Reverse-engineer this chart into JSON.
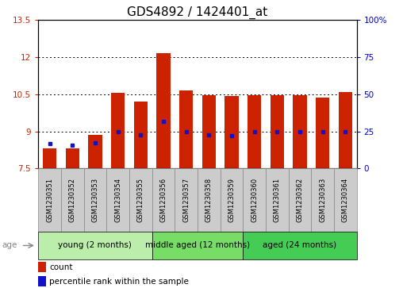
{
  "title": "GDS4892 / 1424401_at",
  "samples": [
    "GSM1230351",
    "GSM1230352",
    "GSM1230353",
    "GSM1230354",
    "GSM1230355",
    "GSM1230356",
    "GSM1230357",
    "GSM1230358",
    "GSM1230359",
    "GSM1230360",
    "GSM1230361",
    "GSM1230362",
    "GSM1230363",
    "GSM1230364"
  ],
  "counts": [
    8.3,
    8.3,
    8.85,
    10.55,
    10.2,
    12.15,
    10.65,
    10.45,
    10.42,
    10.45,
    10.45,
    10.45,
    10.38,
    10.6
  ],
  "percentiles": [
    8.5,
    8.45,
    8.55,
    9.0,
    8.85,
    9.4,
    9.0,
    8.85,
    8.82,
    8.98,
    8.98,
    9.0,
    8.98,
    9.0
  ],
  "ymin": 7.5,
  "ymax": 13.5,
  "yticks": [
    7.5,
    9.0,
    10.5,
    12.0,
    13.5
  ],
  "ytick_labels": [
    "7.5",
    "9",
    "10.5",
    "12",
    "13.5"
  ],
  "y2ticks": [
    0,
    25,
    50,
    75,
    100
  ],
  "y2tick_labels": [
    "0",
    "25",
    "50",
    "75",
    "100%"
  ],
  "gridlines": [
    9.0,
    10.5,
    12.0
  ],
  "bar_color": "#cc2200",
  "percentile_color": "#1111cc",
  "bar_bottom": 7.5,
  "groups": [
    {
      "label": "young (2 months)",
      "start": 0,
      "end": 5,
      "color": "#bbeeaa"
    },
    {
      "label": "middle aged (12 months)",
      "start": 5,
      "end": 9,
      "color": "#77dd66"
    },
    {
      "label": "aged (24 months)",
      "start": 9,
      "end": 14,
      "color": "#44cc55"
    }
  ],
  "age_label": "age",
  "legend_count_label": "count",
  "legend_pct_label": "percentile rank within the sample",
  "title_fontsize": 11,
  "tick_fontsize": 7.5,
  "sample_fontsize": 6,
  "group_fontsize": 7.5,
  "legend_fontsize": 7.5,
  "left_tick_color": "#cc2200",
  "right_tick_color": "#0000cc",
  "box_facecolor": "#cccccc",
  "box_edgecolor": "#888888"
}
